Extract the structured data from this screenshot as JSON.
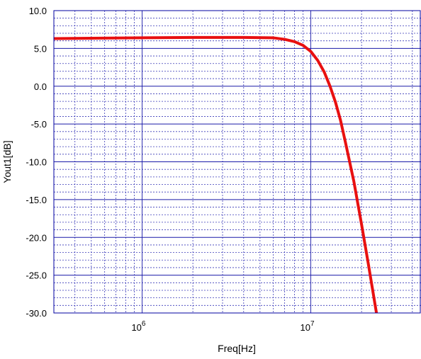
{
  "chart_data": {
    "type": "line",
    "xlabel": "Freq[Hz]",
    "ylabel": "Yout1[dB]",
    "x_scale": "log",
    "xlim": [
      300000,
      45000000
    ],
    "ylim": [
      -30,
      10
    ],
    "grid": true,
    "y_ticks": [
      "10.0",
      "5.0",
      "0.0",
      "-5.0",
      "-10.0",
      "-15.0",
      "-20.0",
      "-25.0",
      "-30.0"
    ],
    "x_ticks": [
      {
        "base": "10",
        "exp": "6",
        "value": 1000000
      },
      {
        "base": "10",
        "exp": "7",
        "value": 10000000
      }
    ],
    "series": [
      {
        "color": "#e81010",
        "x": [
          300000,
          1000000,
          2000000,
          4000000,
          6000000,
          7000000,
          8000000,
          9000000,
          10000000,
          11000000,
          12000000,
          13000000,
          14000000,
          15000000,
          16000000,
          18000000,
          20000000,
          22000000,
          24500000
        ],
        "y": [
          6.3,
          6.4,
          6.45,
          6.45,
          6.4,
          6.2,
          5.9,
          5.4,
          4.6,
          3.4,
          1.9,
          0.0,
          -2.1,
          -4.5,
          -7.3,
          -12.6,
          -18.3,
          -23.7,
          -30.0
        ]
      }
    ]
  },
  "colors": {
    "frame": "#0000a0",
    "grid_major": "#1a1aa8",
    "grid_minor": "#3a3ab8",
    "background": "#ffffff"
  }
}
